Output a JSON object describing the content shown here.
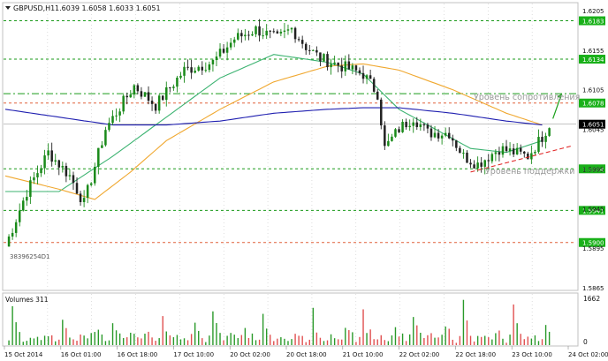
{
  "header": {
    "symbol_tf": "GBPUSD,H1",
    "ohlc": "1.6039 1.6058 1.6033 1.6051"
  },
  "volume_panel": {
    "label": "Volumes 311",
    "axis_labels": [
      "1662",
      "0"
    ]
  },
  "annotations": {
    "resistance": "Уровень сопротивления",
    "support": "Уровень поддержки",
    "chart_id": "38396254D1"
  },
  "colors": {
    "background": "#ffffff",
    "bull": "#1a8a1a",
    "bear": "#222222",
    "ma_fast": "#3cb371",
    "ma_mid": "#f0a830",
    "ma_slow": "#1f1fb0",
    "level_green": "#1a9a1a",
    "level_red": "#e0603a",
    "trend_red": "#e02020",
    "arrow": "#19a019",
    "grid": "#c8c8c8",
    "volume_bull": "#2a9a2a",
    "volume_bear": "#e05050",
    "label_box": "#19b019"
  },
  "chart_data": {
    "type": "candlestick",
    "ylim": [
      1.584,
      1.6205
    ],
    "y_ticks": [
      "1.6205",
      "1.6155",
      "1.6105",
      "1.6045",
      "1.5995",
      "1.5945",
      "1.5895",
      "1.5865"
    ],
    "x_labels": [
      "15 Oct 2014",
      "16 Oct 01:00",
      "16 Oct 18:00",
      "17 Oct 10:00",
      "20 Oct 02:00",
      "20 Oct 18:00",
      "21 Oct 10:00",
      "22 Oct 02:00",
      "22 Oct 18:00",
      "23 Oct 10:00",
      "24 Oct 02:00"
    ],
    "levels": [
      {
        "value": 1.6183,
        "label": "1.6183",
        "style": "green"
      },
      {
        "value": 1.6134,
        "label": "1.6134",
        "style": "green"
      },
      {
        "value": 1.6078,
        "label": "1.6078",
        "style": "red"
      },
      {
        "value": 1.5994,
        "label": "1.5994",
        "style": "green"
      },
      {
        "value": 1.5941,
        "label": "1.5941",
        "style": "green"
      },
      {
        "value": 1.59,
        "label": "1.5900",
        "style": "red"
      }
    ],
    "current_price": {
      "value": 1.6051,
      "label": "1.6051"
    },
    "resistance_level": 1.609,
    "key_points": [
      [
        0,
        1.5895
      ],
      [
        6,
        1.5965
      ],
      [
        12,
        1.6015
      ],
      [
        18,
        1.5985
      ],
      [
        22,
        1.595
      ],
      [
        28,
        1.6045
      ],
      [
        36,
        1.61
      ],
      [
        42,
        1.6075
      ],
      [
        50,
        1.612
      ],
      [
        58,
        1.613
      ],
      [
        64,
        1.616
      ],
      [
        70,
        1.6172
      ],
      [
        76,
        1.616
      ],
      [
        80,
        1.6173
      ],
      [
        84,
        1.615
      ],
      [
        88,
        1.6135
      ],
      [
        94,
        1.6125
      ],
      [
        100,
        1.6115
      ],
      [
        104,
        1.609
      ],
      [
        106,
        1.602
      ],
      [
        110,
        1.6045
      ],
      [
        114,
        1.606
      ],
      [
        118,
        1.604
      ],
      [
        124,
        1.604
      ],
      [
        128,
        1.601
      ],
      [
        132,
        1.6
      ],
      [
        138,
        1.602
      ],
      [
        146,
        1.601
      ],
      [
        150,
        1.6035
      ],
      [
        152,
        1.6051
      ]
    ],
    "ma_fast": [
      [
        0,
        1.5965
      ],
      [
        15,
        1.5965
      ],
      [
        30,
        1.601
      ],
      [
        45,
        1.606
      ],
      [
        60,
        1.611
      ],
      [
        75,
        1.614
      ],
      [
        90,
        1.613
      ],
      [
        100,
        1.6115
      ],
      [
        110,
        1.607
      ],
      [
        120,
        1.6045
      ],
      [
        130,
        1.602
      ],
      [
        140,
        1.6015
      ],
      [
        150,
        1.603
      ]
    ],
    "ma_mid": [
      [
        0,
        1.5985
      ],
      [
        15,
        1.5968
      ],
      [
        25,
        1.5955
      ],
      [
        35,
        1.599
      ],
      [
        45,
        1.603
      ],
      [
        60,
        1.607
      ],
      [
        75,
        1.6105
      ],
      [
        90,
        1.6125
      ],
      [
        100,
        1.6128
      ],
      [
        110,
        1.612
      ],
      [
        125,
        1.6095
      ],
      [
        140,
        1.6065
      ],
      [
        150,
        1.605
      ]
    ],
    "ma_slow": [
      [
        0,
        1.607
      ],
      [
        15,
        1.606
      ],
      [
        30,
        1.605
      ],
      [
        45,
        1.605
      ],
      [
        60,
        1.6055
      ],
      [
        75,
        1.6065
      ],
      [
        90,
        1.607
      ],
      [
        100,
        1.6072
      ],
      [
        110,
        1.6072
      ],
      [
        125,
        1.6065
      ],
      [
        140,
        1.6055
      ],
      [
        150,
        1.605
      ]
    ],
    "support_trend": [
      [
        130,
        1.599
      ],
      [
        158,
        1.6023
      ]
    ],
    "volumes_sample": [
      180,
      420,
      1662,
      900,
      600,
      300,
      380,
      520,
      420,
      300,
      450,
      820,
      600,
      480
    ]
  }
}
